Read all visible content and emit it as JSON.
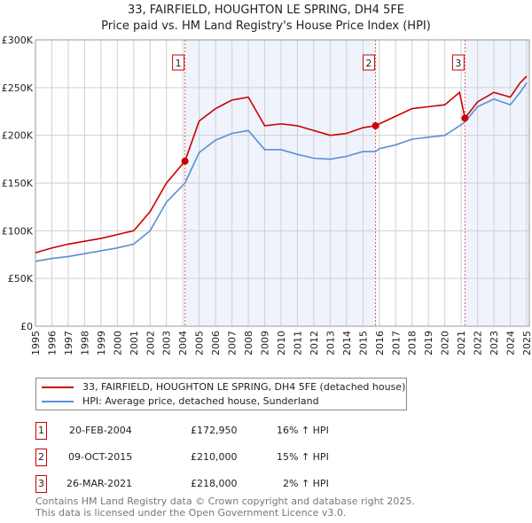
{
  "chart_data": {
    "type": "line",
    "title": "33, FAIRFIELD, HOUGHTON LE SPRING, DH4 5FE",
    "subtitle": "Price paid vs. HM Land Registry's House Price Index (HPI)",
    "xlim": [
      1995,
      2025
    ],
    "ylim": [
      0,
      300000
    ],
    "yticks": [
      {
        "v": 0,
        "label": "£0"
      },
      {
        "v": 50000,
        "label": "£50K"
      },
      {
        "v": 100000,
        "label": "£100K"
      },
      {
        "v": 150000,
        "label": "£150K"
      },
      {
        "v": 200000,
        "label": "£200K"
      },
      {
        "v": 250000,
        "label": "£250K"
      },
      {
        "v": 300000,
        "label": "£300K"
      }
    ],
    "xticks": [
      "1995",
      "1996",
      "1997",
      "1998",
      "1999",
      "2000",
      "2001",
      "2002",
      "2003",
      "2004",
      "2005",
      "2006",
      "2007",
      "2008",
      "2009",
      "2010",
      "2011",
      "2012",
      "2013",
      "2014",
      "2015",
      "2016",
      "2017",
      "2018",
      "2019",
      "2020",
      "2021",
      "2022",
      "2023",
      "2024",
      "2025"
    ],
    "x": [
      1995,
      1996,
      1997,
      1998,
      1999,
      2000,
      2001,
      2002,
      2003,
      2004.13,
      2005,
      2006,
      2007,
      2008,
      2009,
      2010,
      2011,
      2012,
      2013,
      2014,
      2015,
      2015.77,
      2016,
      2017,
      2018,
      2019,
      2020,
      2020.9,
      2021.23,
      2022,
      2023,
      2024,
      2024.6,
      2025
    ],
    "series": [
      {
        "name": "33, FAIRFIELD, HOUGHTON LE SPRING, DH4 5FE (detached house)",
        "color": "#cc0000",
        "values": [
          77000,
          82000,
          86000,
          89000,
          92000,
          96000,
          100000,
          120000,
          150000,
          172950,
          215000,
          228000,
          237000,
          240000,
          210000,
          212000,
          210000,
          205000,
          200000,
          202000,
          208000,
          210000,
          212000,
          220000,
          228000,
          230000,
          232000,
          245000,
          218000,
          235000,
          245000,
          240000,
          255000,
          262000
        ]
      },
      {
        "name": "HPI: Average price, detached house, Sunderland",
        "color": "#5b8fd4",
        "values": [
          68000,
          71000,
          73000,
          76000,
          79000,
          82000,
          86000,
          100000,
          130000,
          150000,
          182000,
          195000,
          202000,
          205000,
          185000,
          185000,
          180000,
          176000,
          175000,
          178000,
          183000,
          183000,
          186000,
          190000,
          196000,
          198000,
          200000,
          210000,
          214000,
          230000,
          238000,
          232000,
          245000,
          255000
        ]
      }
    ],
    "sales": [
      {
        "n": "1",
        "date": "20-FEB-2004",
        "x": 2004.13,
        "price": "£172,950",
        "value": 172950,
        "hpi": "16% ↑ HPI"
      },
      {
        "n": "2",
        "date": "09-OCT-2015",
        "x": 2015.77,
        "price": "£210,000",
        "value": 210000,
        "hpi": "15% ↑ HPI"
      },
      {
        "n": "3",
        "date": "26-MAR-2021",
        "x": 2021.23,
        "price": "£218,000",
        "value": 218000,
        "hpi": "2% ↑ HPI"
      }
    ]
  },
  "footer": {
    "line1": "Contains HM Land Registry data © Crown copyright and database right 2025.",
    "line2": "This data is licensed under the Open Government Licence v3.0."
  }
}
